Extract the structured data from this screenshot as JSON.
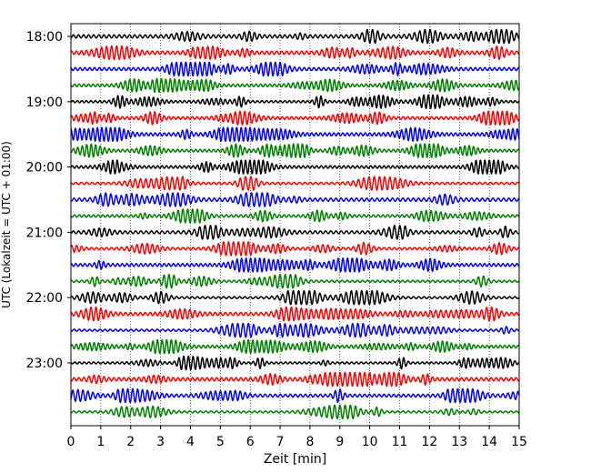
{
  "chart_data": {
    "type": "line",
    "title": "",
    "xlabel": "Zeit  [min]",
    "ylabel": "UTC (Lokalzeit = UTC + 01:00)",
    "xlim": [
      0,
      15
    ],
    "x_ticks": [
      "0",
      "1",
      "2",
      "3",
      "4",
      "5",
      "6",
      "7",
      "8",
      "9",
      "10",
      "11",
      "12",
      "13",
      "14",
      "15"
    ],
    "y_ticks": [
      "18:00",
      "19:00",
      "20:00",
      "21:00",
      "22:00",
      "23:00"
    ],
    "grid": "vertical dotted",
    "trace_interval_minutes": 15,
    "trace_colors": [
      "#000000",
      "#ff0000",
      "#0000ff",
      "#008000"
    ],
    "series": [
      {
        "start": "18:00",
        "color": "#000000"
      },
      {
        "start": "18:15",
        "color": "#ff0000"
      },
      {
        "start": "18:30",
        "color": "#0000ff"
      },
      {
        "start": "18:45",
        "color": "#008000"
      },
      {
        "start": "19:00",
        "color": "#000000"
      },
      {
        "start": "19:15",
        "color": "#ff0000"
      },
      {
        "start": "19:30",
        "color": "#0000ff"
      },
      {
        "start": "19:45",
        "color": "#008000"
      },
      {
        "start": "20:00",
        "color": "#000000"
      },
      {
        "start": "20:15",
        "color": "#ff0000"
      },
      {
        "start": "20:30",
        "color": "#0000ff"
      },
      {
        "start": "20:45",
        "color": "#008000"
      },
      {
        "start": "21:00",
        "color": "#000000"
      },
      {
        "start": "21:15",
        "color": "#ff0000"
      },
      {
        "start": "21:30",
        "color": "#0000ff"
      },
      {
        "start": "21:45",
        "color": "#008000"
      },
      {
        "start": "22:00",
        "color": "#000000"
      },
      {
        "start": "22:15",
        "color": "#ff0000"
      },
      {
        "start": "22:30",
        "color": "#0000ff"
      },
      {
        "start": "22:45",
        "color": "#008000"
      },
      {
        "start": "23:00",
        "color": "#000000"
      },
      {
        "start": "23:15",
        "color": "#ff0000"
      },
      {
        "start": "23:30",
        "color": "#0000ff"
      },
      {
        "start": "23:45",
        "color": "#008000"
      }
    ]
  }
}
